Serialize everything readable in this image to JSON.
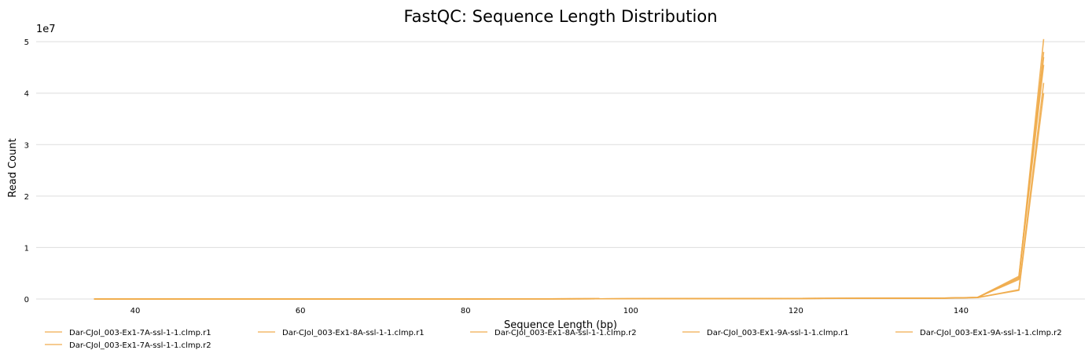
{
  "chart_data": {
    "type": "line",
    "title": "FastQC: Sequence Length Distribution",
    "xlabel": "Sequence Length (bp)",
    "ylabel": "Read Count",
    "y_exponent_label": "1e7",
    "xlim": [
      28,
      155
    ],
    "ylim": [
      0,
      52000000
    ],
    "x_ticks": [
      40,
      60,
      80,
      100,
      120,
      140
    ],
    "y_ticks": [
      0,
      10000000,
      20000000,
      30000000,
      40000000,
      50000000
    ],
    "y_tick_labels": [
      "0",
      "1",
      "2",
      "3",
      "4",
      "5"
    ],
    "grid": "horizontal",
    "legend_position": "bottom",
    "series_color": "#f0ac4d",
    "x": [
      35,
      40,
      50,
      60,
      70,
      80,
      90,
      100,
      110,
      120,
      130,
      138,
      142,
      147,
      150
    ],
    "series": [
      {
        "name": "Dar-CJol_003-Ex1-7A-ssl-1-1.clmp.r1",
        "values": [
          5000,
          6000,
          8000,
          10000,
          15000,
          20000,
          30000,
          50000,
          80000,
          110000,
          150000,
          180000,
          300000,
          4200000,
          48000000
        ]
      },
      {
        "name": "Dar-CJol_003-Ex1-8A-ssl-1-1.clmp.r1",
        "values": [
          4000,
          5000,
          7000,
          9000,
          13000,
          18000,
          28000,
          45000,
          75000,
          100000,
          140000,
          170000,
          280000,
          1800000,
          42000000
        ]
      },
      {
        "name": "Dar-CJol_003-Ex1-8A-ssl-1-1.clmp.r2",
        "values": [
          4000,
          5000,
          7000,
          9000,
          13000,
          18000,
          28000,
          45000,
          75000,
          100000,
          140000,
          170000,
          280000,
          1700000,
          40000000
        ]
      },
      {
        "name": "Dar-CJol_003-Ex1-9A-ssl-1-1.clmp.r1",
        "values": [
          5000,
          6000,
          8000,
          10000,
          15000,
          20000,
          30000,
          50000,
          80000,
          110000,
          150000,
          180000,
          320000,
          3800000,
          50500000
        ]
      },
      {
        "name": "Dar-CJol_003-Ex1-9A-ssl-1-1.clmp.r2",
        "values": [
          5000,
          6000,
          8000,
          10000,
          15000,
          20000,
          30000,
          50000,
          80000,
          110000,
          150000,
          180000,
          300000,
          4000000,
          45500000
        ]
      },
      {
        "name": "Dar-CJol_003-Ex1-7A-ssl-1-1.clmp.r2",
        "values": [
          5000,
          6000,
          8000,
          10000,
          15000,
          20000,
          30000,
          50000,
          80000,
          110000,
          150000,
          180000,
          300000,
          4400000,
          47000000
        ]
      }
    ]
  }
}
